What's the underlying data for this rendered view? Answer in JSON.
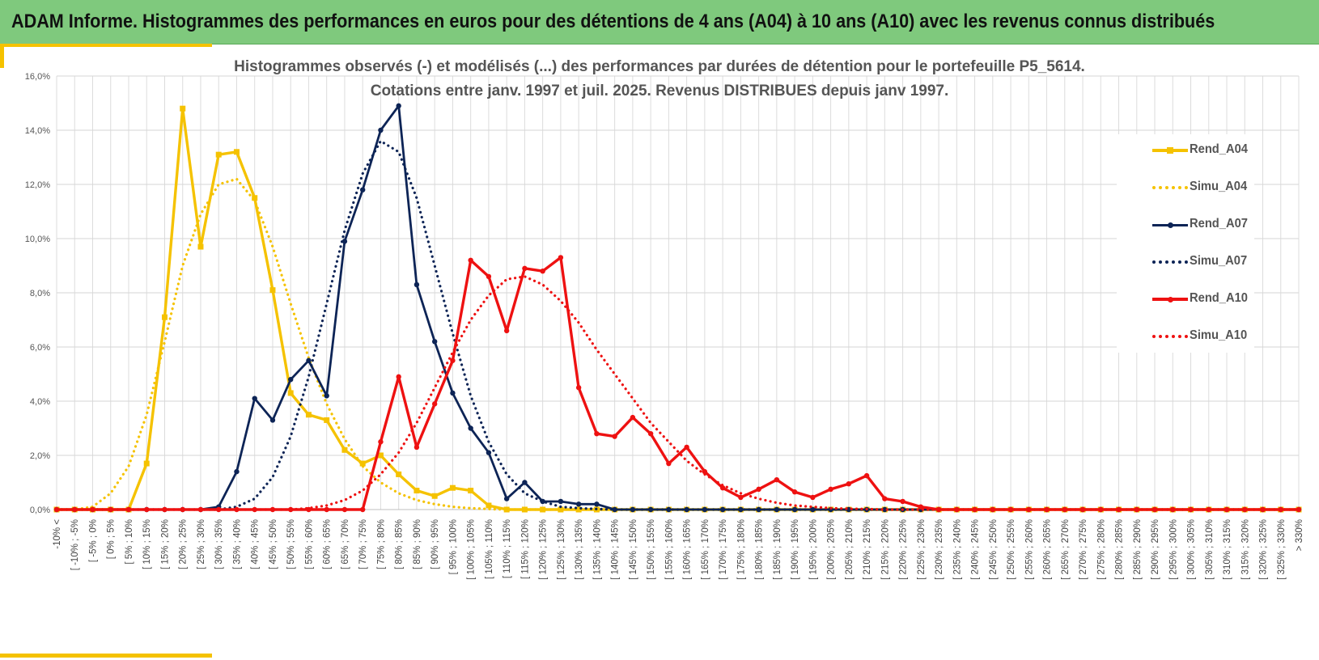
{
  "banner": {
    "title": "ADAM Informe. Histogrammes des performances en euros pour des détentions de 4 ans (A04) à 10 ans (A10) avec les revenus connus distribués"
  },
  "colors": {
    "banner_bg": "#7fc97d",
    "accent": "#f5c200",
    "a04": "#f5c200",
    "a07": "#0d2456",
    "a10": "#ee1111"
  },
  "chart_data": {
    "type": "line",
    "title_line1": "Histogrammes observés (-) et modélisés (...) des performances par durées de détention pour  le portefeuille P5_5614.",
    "title_line2": "Cotations entre janv. 1997 et juil. 2025. Revenus DISTRIBUES depuis janv 1997.",
    "xlabel": "",
    "ylabel": "",
    "ylim": [
      0,
      16
    ],
    "yticks": [
      "0,0%",
      "2,0%",
      "4,0%",
      "6,0%",
      "8,0%",
      "10,0%",
      "12,0%",
      "14,0%",
      "16,0%"
    ],
    "grid": true,
    "legend_position": "right",
    "categories": [
      "-10% <",
      "[ -10% ; -5%",
      "[ -5% ; 0%",
      "[ 0% ; 5%",
      "[ 5% ; 10%",
      "[ 10% ; 15%",
      "[ 15% ; 20%",
      "[ 20% ; 25%",
      "[ 25% ; 30%",
      "[ 30% ; 35%",
      "[ 35% ; 40%",
      "[ 40% ; 45%",
      "[ 45% ; 50%",
      "[ 50% ; 55%",
      "[ 55% ; 60%",
      "[ 60% ; 65%",
      "[ 65% ; 70%",
      "[ 70% ; 75%",
      "[ 75% ; 80%",
      "[ 80% ; 85%",
      "[ 85% ; 90%",
      "[ 90% ; 95%",
      "[ 95% ; 100%",
      "[ 100% ; 105%",
      "[ 105% ; 110%",
      "[ 110% ; 115%",
      "[ 115% ; 120%",
      "[ 120% ; 125%",
      "[ 125% ; 130%",
      "[ 130% ; 135%",
      "[ 135% ; 140%",
      "[ 140% ; 145%",
      "[ 145% ; 150%",
      "[ 150% ; 155%",
      "[ 155% ; 160%",
      "[ 160% ; 165%",
      "[ 165% ; 170%",
      "[ 170% ; 175%",
      "[ 175% ; 180%",
      "[ 180% ; 185%",
      "[ 185% ; 190%",
      "[ 190% ; 195%",
      "[ 195% ; 200%",
      "[ 200% ; 205%",
      "[ 205% ; 210%",
      "[ 210% ; 215%",
      "[ 215% ; 220%",
      "[ 220% ; 225%",
      "[ 225% ; 230%",
      "[ 230% ; 235%",
      "[ 235% ; 240%",
      "[ 240% ; 245%",
      "[ 245% ; 250%",
      "[ 250% ; 255%",
      "[ 255% ; 260%",
      "[ 260% ; 265%",
      "[ 265% ; 270%",
      "[ 270% ; 275%",
      "[ 275% ; 280%",
      "[ 280% ; 285%",
      "[ 285% ; 290%",
      "[ 290% ; 295%",
      "[ 295% ; 300%",
      "[ 300% ; 305%",
      "[ 305% ; 310%",
      "[ 310% ; 315%",
      "[ 315% ; 320%",
      "[ 320% ; 325%",
      "[ 325% ; 330%",
      "> 330%"
    ],
    "series": [
      {
        "name": "Rend_A04",
        "style": "solid",
        "marker": "square",
        "color": "#f5c200",
        "values": [
          0,
          0,
          0,
          0,
          0,
          1.7,
          7.1,
          14.8,
          9.7,
          13.1,
          13.2,
          11.5,
          8.1,
          4.3,
          3.5,
          3.3,
          2.2,
          1.7,
          2.0,
          1.3,
          0.7,
          0.5,
          0.8,
          0.7,
          0.15,
          0,
          0,
          0,
          0,
          0,
          0,
          0,
          0,
          0,
          0,
          0,
          0,
          0,
          0,
          0,
          0,
          0,
          0,
          0,
          0,
          0,
          0,
          0,
          0,
          0,
          0,
          0,
          0,
          0,
          0,
          0,
          0,
          0,
          0,
          0,
          0,
          0,
          0,
          0,
          0,
          0,
          0,
          0,
          0,
          0
        ]
      },
      {
        "name": "Simu_A04",
        "style": "dotted",
        "marker": "none",
        "color": "#f5c200",
        "values": [
          0,
          0,
          0.1,
          0.6,
          1.6,
          3.5,
          6.2,
          9.0,
          10.9,
          12.0,
          12.2,
          11.4,
          9.7,
          7.6,
          5.6,
          3.9,
          2.6,
          1.6,
          1.0,
          0.6,
          0.35,
          0.2,
          0.1,
          0.05,
          0.02,
          0,
          0,
          0,
          0,
          0,
          0,
          0,
          0,
          0,
          0,
          0,
          0,
          0,
          0,
          0,
          0,
          0,
          0,
          0,
          0,
          0,
          0,
          0,
          0,
          0,
          0,
          0,
          0,
          0,
          0,
          0,
          0,
          0,
          0,
          0,
          0,
          0,
          0,
          0,
          0,
          0,
          0,
          0,
          0,
          0
        ]
      },
      {
        "name": "Rend_A07",
        "style": "solid",
        "marker": "circle",
        "color": "#0d2456",
        "values": [
          0,
          0,
          0,
          0,
          0,
          0,
          0,
          0,
          0,
          0.1,
          1.4,
          4.1,
          3.3,
          4.8,
          5.5,
          4.2,
          9.9,
          11.8,
          14.0,
          14.9,
          8.3,
          6.2,
          4.3,
          3.0,
          2.1,
          0.4,
          1.0,
          0.3,
          0.3,
          0.2,
          0.2,
          0,
          0,
          0,
          0,
          0,
          0,
          0,
          0,
          0,
          0,
          0,
          0,
          0,
          0,
          0,
          0,
          0,
          0,
          0,
          0,
          0,
          0,
          0,
          0,
          0,
          0,
          0,
          0,
          0,
          0,
          0,
          0,
          0,
          0,
          0,
          0,
          0,
          0,
          0
        ]
      },
      {
        "name": "Simu_A07",
        "style": "dotted",
        "marker": "none",
        "color": "#0d2456",
        "values": [
          0,
          0,
          0,
          0,
          0,
          0,
          0,
          0,
          0,
          0,
          0.1,
          0.4,
          1.2,
          2.7,
          4.9,
          7.6,
          10.3,
          12.4,
          13.6,
          13.2,
          11.5,
          9.0,
          6.5,
          4.2,
          2.5,
          1.3,
          0.6,
          0.3,
          0.1,
          0.05,
          0.02,
          0,
          0,
          0,
          0,
          0,
          0,
          0,
          0,
          0,
          0,
          0,
          0,
          0,
          0,
          0,
          0,
          0,
          0,
          0,
          0,
          0,
          0,
          0,
          0,
          0,
          0,
          0,
          0,
          0,
          0,
          0,
          0,
          0,
          0,
          0,
          0,
          0,
          0,
          0
        ]
      },
      {
        "name": "Rend_A10",
        "style": "solid",
        "marker": "circle",
        "color": "#ee1111",
        "values": [
          0,
          0,
          0,
          0,
          0,
          0,
          0,
          0,
          0,
          0,
          0,
          0,
          0,
          0,
          0,
          0,
          0,
          0,
          2.5,
          4.9,
          2.3,
          3.9,
          5.5,
          9.2,
          8.6,
          6.6,
          8.9,
          8.8,
          9.3,
          4.5,
          2.8,
          2.7,
          3.4,
          2.8,
          1.7,
          2.3,
          1.4,
          0.8,
          0.45,
          0.75,
          1.1,
          0.65,
          0.45,
          0.75,
          0.95,
          1.25,
          0.4,
          0.3,
          0.1,
          0,
          0,
          0,
          0,
          0,
          0,
          0,
          0,
          0,
          0,
          0,
          0,
          0,
          0,
          0,
          0,
          0,
          0,
          0,
          0,
          0
        ]
      },
      {
        "name": "Simu_A10",
        "style": "dotted",
        "marker": "none",
        "color": "#ee1111",
        "values": [
          0,
          0,
          0,
          0,
          0,
          0,
          0,
          0,
          0,
          0,
          0,
          0,
          0,
          0,
          0.05,
          0.15,
          0.35,
          0.7,
          1.3,
          2.1,
          3.2,
          4.5,
          5.8,
          7.0,
          7.9,
          8.5,
          8.6,
          8.3,
          7.7,
          6.9,
          5.9,
          5.0,
          4.1,
          3.2,
          2.5,
          1.8,
          1.3,
          0.9,
          0.6,
          0.4,
          0.25,
          0.15,
          0.1,
          0.05,
          0.03,
          0.02,
          0,
          0,
          0,
          0,
          0,
          0,
          0,
          0,
          0,
          0,
          0,
          0,
          0,
          0,
          0,
          0,
          0,
          0,
          0,
          0,
          0,
          0,
          0,
          0
        ]
      }
    ]
  }
}
